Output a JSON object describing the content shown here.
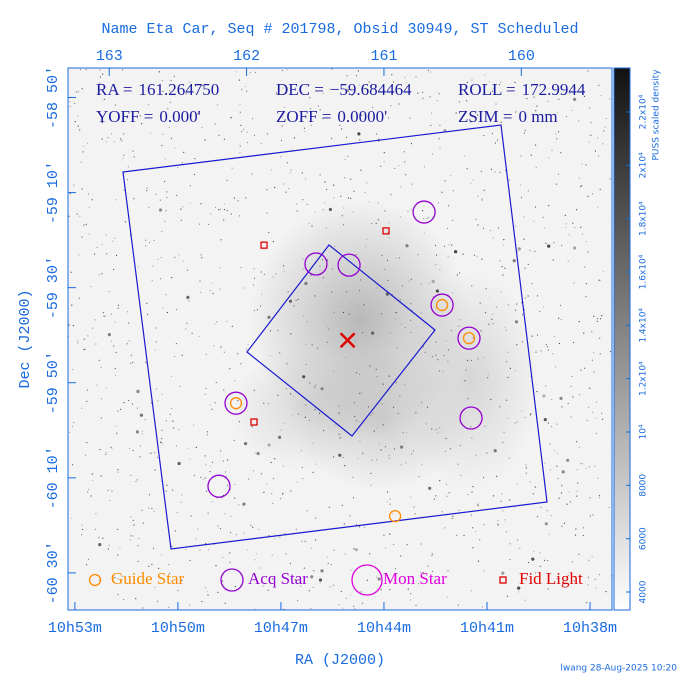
{
  "chart_data": {
    "type": "scatter",
    "title": "Name Eta Car, Seq # 201798, Obsid 30949, ST Scheduled",
    "xlabel": "RA (J2000)",
    "ylabel": "Dec (J2000)",
    "xlim": [
      163.3,
      159.34
    ],
    "ylim": [
      -60.63,
      -58.73
    ],
    "xticks": [
      {
        "value": 163.25,
        "label": "10h53m"
      },
      {
        "value": 162.5,
        "label": "10h50m"
      },
      {
        "value": 161.75,
        "label": "10h47m"
      },
      {
        "value": 161.0,
        "label": "10h44m"
      },
      {
        "value": 160.25,
        "label": "10h41m"
      },
      {
        "value": 159.5,
        "label": "10h38m"
      }
    ],
    "x2ticks": [
      163,
      162,
      161,
      160
    ],
    "yticks": [
      {
        "value": -58.8333,
        "label": "-58 50'"
      },
      {
        "value": -59.1667,
        "label": "-59 10'"
      },
      {
        "value": -59.5,
        "label": "-59 30'"
      },
      {
        "value": -59.8333,
        "label": "-59 50'"
      },
      {
        "value": -60.1667,
        "label": "-60 10'"
      },
      {
        "value": -60.5,
        "label": "-60 30'"
      }
    ],
    "info": [
      {
        "label": "RA =",
        "value": "161.264750"
      },
      {
        "label": "DEC =",
        "value": "−59.684464"
      },
      {
        "label": "ROLL =",
        "value": "172.9944"
      },
      {
        "label": "YOFF =",
        "value": "0.000'"
      },
      {
        "label": "ZOFF =",
        "value": "0.0000'"
      },
      {
        "label": "ZSIM =",
        "value": "0 mm"
      }
    ],
    "series": [
      {
        "name": "Guide Star",
        "color": "#ff8c00",
        "marker": "small-circle",
        "x": [
          162.077,
          160.577,
          160.381,
          160.919
        ],
        "y": [
          -59.905,
          -59.561,
          -59.677,
          -60.301
        ]
      },
      {
        "name": "Acq Star",
        "color": "#9400d3",
        "marker": "circle",
        "x": [
          160.708,
          161.495,
          161.254,
          160.577,
          160.381,
          162.077,
          160.366,
          162.201
        ],
        "y": [
          -59.235,
          -59.417,
          -59.421,
          -59.561,
          -59.677,
          -59.905,
          -59.957,
          -60.196
        ]
      },
      {
        "name": "Mon Star",
        "color": "#e000e0",
        "marker": "big-circle",
        "x": [],
        "y": []
      },
      {
        "name": "Fid Light",
        "color": "#e00000",
        "marker": "square",
        "x": [
          161.873,
          160.985,
          161.946
        ],
        "y": [
          -59.351,
          -59.301,
          -59.971
        ]
      }
    ],
    "colorbar": {
      "label": "PUSS scaled density",
      "lim": [
        3325,
        23650
      ],
      "ticks": [
        4000,
        6000,
        8000,
        {
          "value": 10000,
          "label": "10⁴"
        },
        {
          "value": 12000,
          "label": "1.2x10⁴"
        },
        {
          "value": 14000,
          "label": "1.4x10⁴"
        },
        {
          "value": 16000,
          "label": "1.6x10⁴"
        },
        {
          "value": 18000,
          "label": "1.8x10⁴"
        },
        {
          "value": 20000,
          "label": "2x10⁴"
        },
        {
          "value": 22000,
          "label": "2.2x10⁴"
        }
      ]
    },
    "footer": "lwang 28-Aug-2025 10:20"
  }
}
